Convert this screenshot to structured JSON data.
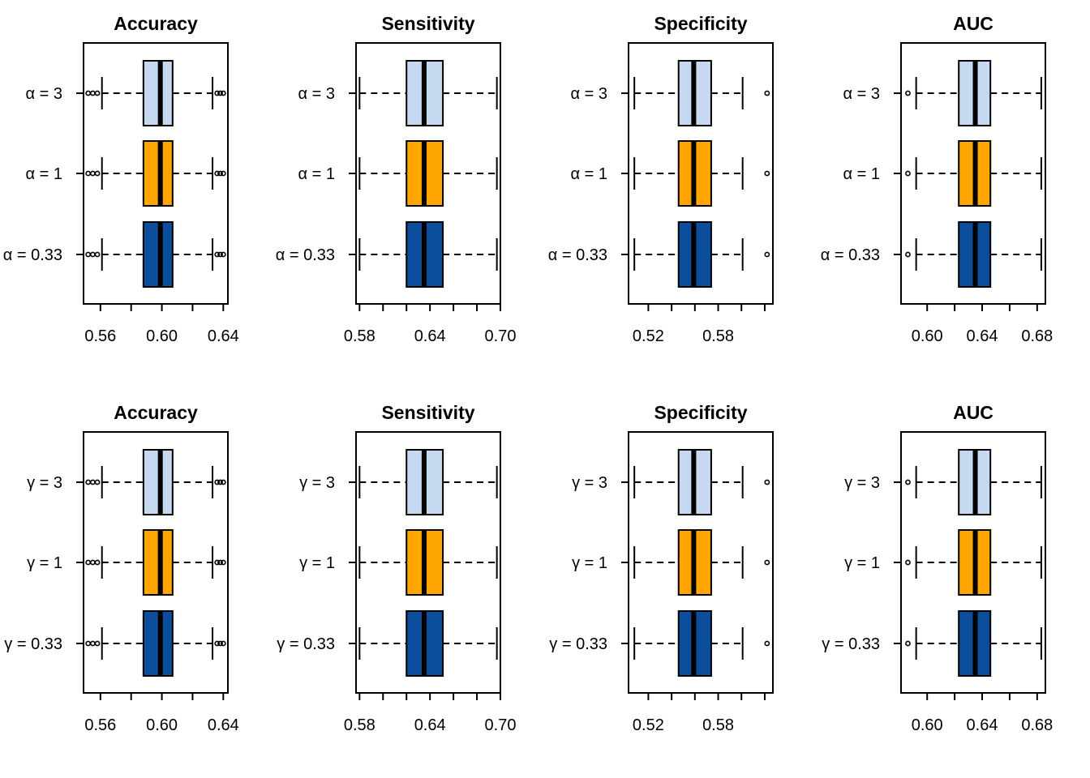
{
  "colors": {
    "box_light": "#c6d9f0",
    "box_orange": "#ffa500",
    "box_dark": "#0b4f9c",
    "ink": "#000000"
  },
  "chart_data": [
    {
      "type": "boxplot",
      "orientation": "horizontal",
      "title": "Accuracy",
      "param_symbol": "α",
      "xlim": [
        0.549,
        0.643
      ],
      "ticks": [
        0.56,
        0.58,
        0.6,
        0.62,
        0.64
      ],
      "tick_labels": [
        "0.56",
        "",
        "0.60",
        "",
        "0.64"
      ],
      "groups": [
        {
          "label": "α = 3",
          "color": "box_light",
          "whisker_low": 0.561,
          "q1": 0.588,
          "median": 0.599,
          "q3": 0.607,
          "whisker_high": 0.633,
          "outliers": [
            0.552,
            0.555,
            0.558,
            0.636,
            0.638,
            0.64
          ]
        },
        {
          "label": "α = 1",
          "color": "box_orange",
          "whisker_low": 0.561,
          "q1": 0.588,
          "median": 0.599,
          "q3": 0.607,
          "whisker_high": 0.633,
          "outliers": [
            0.552,
            0.555,
            0.558,
            0.636,
            0.638,
            0.64
          ]
        },
        {
          "label": "α = 0.33",
          "color": "box_dark",
          "whisker_low": 0.561,
          "q1": 0.588,
          "median": 0.599,
          "q3": 0.607,
          "whisker_high": 0.633,
          "outliers": [
            0.552,
            0.555,
            0.558,
            0.636,
            0.638,
            0.64
          ]
        }
      ]
    },
    {
      "type": "boxplot",
      "orientation": "horizontal",
      "title": "Sensitivity",
      "param_symbol": "α",
      "xlim": [
        0.577,
        0.7
      ],
      "ticks": [
        0.58,
        0.6,
        0.62,
        0.64,
        0.66,
        0.68,
        0.7
      ],
      "tick_labels": [
        "0.58",
        "",
        "",
        "0.64",
        "",
        "",
        "0.70"
      ],
      "groups": [
        {
          "label": "α = 3",
          "color": "box_light",
          "whisker_low": 0.58,
          "q1": 0.62,
          "median": 0.635,
          "q3": 0.651,
          "whisker_high": 0.697,
          "outliers": []
        },
        {
          "label": "α = 1",
          "color": "box_orange",
          "whisker_low": 0.58,
          "q1": 0.62,
          "median": 0.635,
          "q3": 0.651,
          "whisker_high": 0.697,
          "outliers": []
        },
        {
          "label": "α = 0.33",
          "color": "box_dark",
          "whisker_low": 0.58,
          "q1": 0.62,
          "median": 0.635,
          "q3": 0.651,
          "whisker_high": 0.697,
          "outliers": []
        }
      ]
    },
    {
      "type": "boxplot",
      "orientation": "horizontal",
      "title": "Specificity",
      "param_symbol": "α",
      "xlim": [
        0.503,
        0.627
      ],
      "ticks": [
        0.52,
        0.54,
        0.56,
        0.58,
        0.6,
        0.62
      ],
      "tick_labels": [
        "0.52",
        "",
        "",
        "0.58",
        "",
        ""
      ],
      "groups": [
        {
          "label": "α = 3",
          "color": "box_light",
          "whisker_low": 0.508,
          "q1": 0.546,
          "median": 0.559,
          "q3": 0.574,
          "whisker_high": 0.601,
          "outliers": [
            0.622
          ]
        },
        {
          "label": "α = 1",
          "color": "box_orange",
          "whisker_low": 0.508,
          "q1": 0.546,
          "median": 0.559,
          "q3": 0.574,
          "whisker_high": 0.601,
          "outliers": [
            0.622
          ]
        },
        {
          "label": "α = 0.33",
          "color": "box_dark",
          "whisker_low": 0.508,
          "q1": 0.546,
          "median": 0.559,
          "q3": 0.574,
          "whisker_high": 0.601,
          "outliers": [
            0.622
          ]
        }
      ]
    },
    {
      "type": "boxplot",
      "orientation": "horizontal",
      "title": "AUC",
      "param_symbol": "α",
      "xlim": [
        0.581,
        0.686
      ],
      "ticks": [
        0.6,
        0.62,
        0.64,
        0.66,
        0.68
      ],
      "tick_labels": [
        "0.60",
        "",
        "0.64",
        "",
        "0.68"
      ],
      "groups": [
        {
          "label": "α = 3",
          "color": "box_light",
          "whisker_low": 0.592,
          "q1": 0.623,
          "median": 0.635,
          "q3": 0.646,
          "whisker_high": 0.683,
          "outliers": [
            0.586
          ]
        },
        {
          "label": "α = 1",
          "color": "box_orange",
          "whisker_low": 0.592,
          "q1": 0.623,
          "median": 0.635,
          "q3": 0.646,
          "whisker_high": 0.683,
          "outliers": [
            0.586
          ]
        },
        {
          "label": "α = 0.33",
          "color": "box_dark",
          "whisker_low": 0.592,
          "q1": 0.623,
          "median": 0.635,
          "q3": 0.646,
          "whisker_high": 0.683,
          "outliers": [
            0.586
          ]
        }
      ]
    },
    {
      "type": "boxplot",
      "orientation": "horizontal",
      "title": "Accuracy",
      "param_symbol": "γ",
      "xlim": [
        0.549,
        0.643
      ],
      "ticks": [
        0.56,
        0.58,
        0.6,
        0.62,
        0.64
      ],
      "tick_labels": [
        "0.56",
        "",
        "0.60",
        "",
        "0.64"
      ],
      "groups": [
        {
          "label": "γ = 3",
          "color": "box_light",
          "whisker_low": 0.561,
          "q1": 0.588,
          "median": 0.599,
          "q3": 0.607,
          "whisker_high": 0.633,
          "outliers": [
            0.552,
            0.555,
            0.558,
            0.636,
            0.638,
            0.64
          ]
        },
        {
          "label": "γ = 1",
          "color": "box_orange",
          "whisker_low": 0.561,
          "q1": 0.588,
          "median": 0.599,
          "q3": 0.607,
          "whisker_high": 0.633,
          "outliers": [
            0.552,
            0.555,
            0.558,
            0.636,
            0.638,
            0.64
          ]
        },
        {
          "label": "γ = 0.33",
          "color": "box_dark",
          "whisker_low": 0.561,
          "q1": 0.588,
          "median": 0.599,
          "q3": 0.607,
          "whisker_high": 0.633,
          "outliers": [
            0.552,
            0.555,
            0.558,
            0.636,
            0.638,
            0.64
          ]
        }
      ]
    },
    {
      "type": "boxplot",
      "orientation": "horizontal",
      "title": "Sensitivity",
      "param_symbol": "γ",
      "xlim": [
        0.577,
        0.7
      ],
      "ticks": [
        0.58,
        0.6,
        0.62,
        0.64,
        0.66,
        0.68,
        0.7
      ],
      "tick_labels": [
        "0.58",
        "",
        "",
        "0.64",
        "",
        "",
        "0.70"
      ],
      "groups": [
        {
          "label": "γ = 3",
          "color": "box_light",
          "whisker_low": 0.58,
          "q1": 0.62,
          "median": 0.635,
          "q3": 0.651,
          "whisker_high": 0.697,
          "outliers": []
        },
        {
          "label": "γ = 1",
          "color": "box_orange",
          "whisker_low": 0.58,
          "q1": 0.62,
          "median": 0.635,
          "q3": 0.651,
          "whisker_high": 0.697,
          "outliers": []
        },
        {
          "label": "γ = 0.33",
          "color": "box_dark",
          "whisker_low": 0.58,
          "q1": 0.62,
          "median": 0.635,
          "q3": 0.651,
          "whisker_high": 0.697,
          "outliers": []
        }
      ]
    },
    {
      "type": "boxplot",
      "orientation": "horizontal",
      "title": "Specificity",
      "param_symbol": "γ",
      "xlim": [
        0.503,
        0.627
      ],
      "ticks": [
        0.52,
        0.54,
        0.56,
        0.58,
        0.6,
        0.62
      ],
      "tick_labels": [
        "0.52",
        "",
        "",
        "0.58",
        "",
        ""
      ],
      "groups": [
        {
          "label": "γ = 3",
          "color": "box_light",
          "whisker_low": 0.508,
          "q1": 0.546,
          "median": 0.559,
          "q3": 0.574,
          "whisker_high": 0.601,
          "outliers": [
            0.622
          ]
        },
        {
          "label": "γ = 1",
          "color": "box_orange",
          "whisker_low": 0.508,
          "q1": 0.546,
          "median": 0.559,
          "q3": 0.574,
          "whisker_high": 0.601,
          "outliers": [
            0.622
          ]
        },
        {
          "label": "γ = 0.33",
          "color": "box_dark",
          "whisker_low": 0.508,
          "q1": 0.546,
          "median": 0.559,
          "q3": 0.574,
          "whisker_high": 0.601,
          "outliers": [
            0.622
          ]
        }
      ]
    },
    {
      "type": "boxplot",
      "orientation": "horizontal",
      "title": "AUC",
      "param_symbol": "γ",
      "xlim": [
        0.581,
        0.686
      ],
      "ticks": [
        0.6,
        0.62,
        0.64,
        0.66,
        0.68
      ],
      "tick_labels": [
        "0.60",
        "",
        "0.64",
        "",
        "0.68"
      ],
      "groups": [
        {
          "label": "γ = 3",
          "color": "box_light",
          "whisker_low": 0.592,
          "q1": 0.623,
          "median": 0.635,
          "q3": 0.646,
          "whisker_high": 0.683,
          "outliers": [
            0.586
          ]
        },
        {
          "label": "γ = 1",
          "color": "box_orange",
          "whisker_low": 0.592,
          "q1": 0.623,
          "median": 0.635,
          "q3": 0.646,
          "whisker_high": 0.683,
          "outliers": [
            0.586
          ]
        },
        {
          "label": "γ = 0.33",
          "color": "box_dark",
          "whisker_low": 0.592,
          "q1": 0.623,
          "median": 0.635,
          "q3": 0.646,
          "whisker_high": 0.683,
          "outliers": [
            0.586
          ]
        }
      ]
    }
  ]
}
